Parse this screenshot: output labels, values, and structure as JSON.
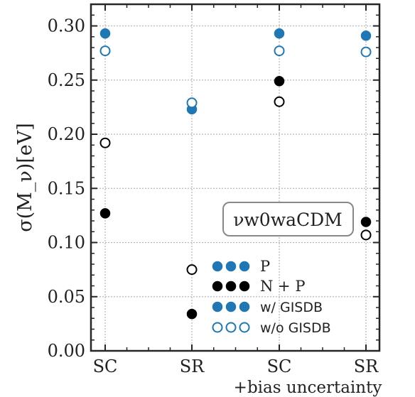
{
  "chart_data": {
    "type": "scatter",
    "categories": [
      "SC",
      "SR",
      "SC",
      "SR"
    ],
    "extra_label": "+bias uncertainty",
    "ylabel": "σ(M_ν)[eV]",
    "ylim": [
      0.0,
      0.32
    ],
    "yticks": [
      "0.00",
      "0.05",
      "0.10",
      "0.15",
      "0.20",
      "0.25",
      "0.30"
    ],
    "grid": true,
    "annotation": "νw0waCDM",
    "legend_position": "bottom-right",
    "legend": [
      {
        "label": "P",
        "style": "filled",
        "colors": [
          "#1f77b4",
          "#1f77b4",
          "#1f77b4"
        ]
      },
      {
        "label": "N + P",
        "style": "filled",
        "colors": [
          "#000000",
          "#000000",
          "#000000"
        ]
      },
      {
        "label": "w/ GISDB",
        "style": "filled",
        "colors": [
          "#1f77b4",
          "#1f77b4",
          "#1f77b4"
        ]
      },
      {
        "label": "w/o GISDB",
        "style": "open",
        "colors": [
          "#1f77b4",
          "#1f77b4",
          "#1f77b4"
        ]
      }
    ],
    "series": [
      {
        "color": "#1f77b4",
        "filled": true,
        "values": [
          0.293,
          0.223,
          0.293,
          0.291
        ]
      },
      {
        "color": "#1f77b4",
        "filled": false,
        "values": [
          0.277,
          0.229,
          0.277,
          0.276
        ]
      },
      {
        "color": "#000000",
        "filled": true,
        "values": [
          0.127,
          0.034,
          0.249,
          0.119
        ]
      },
      {
        "color": "#000000",
        "filled": false,
        "values": [
          0.192,
          0.075,
          0.23,
          0.107
        ]
      }
    ]
  }
}
